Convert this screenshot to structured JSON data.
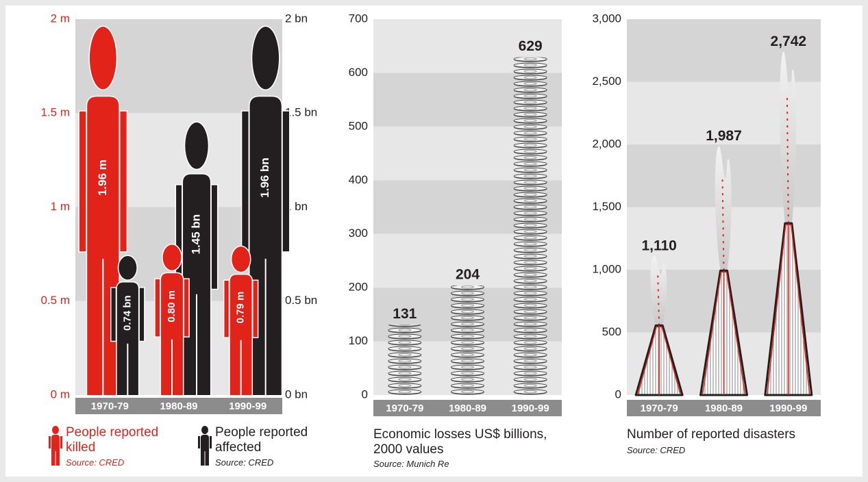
{
  "chart_data": [
    {
      "type": "pictogram",
      "categories": [
        "1970-79",
        "1980-89",
        "1990-99"
      ],
      "series": [
        {
          "name": "People reported killed",
          "color": "#e2231a",
          "values": [
            1.96,
            0.8,
            0.79
          ],
          "value_labels": [
            "1.96 m",
            "0.80 m",
            "0.79 m"
          ],
          "source": "Source: CRED"
        },
        {
          "name": "People reported affected",
          "color": "#231f20",
          "values": [
            0.74,
            1.45,
            1.96
          ],
          "value_labels": [
            "0.74 bn",
            "1.45 bn",
            "1.96 bn"
          ],
          "axis": "y2",
          "source": "Source: CRED"
        }
      ],
      "ylim": [
        0,
        2
      ],
      "yticks": [
        {
          "value": 0,
          "label": "0 m"
        },
        {
          "value": 0.5,
          "label": "0.5 m"
        },
        {
          "value": 1,
          "label": "1 m"
        },
        {
          "value": 1.5,
          "label": "1.5 m"
        },
        {
          "value": 2,
          "label": "2 m"
        }
      ],
      "y2lim": [
        0,
        2
      ],
      "y2ticks": [
        {
          "value": 0,
          "label": "0 bn"
        },
        {
          "value": 0.5,
          "label": "0.5 bn"
        },
        {
          "value": 1,
          "label": "1 bn"
        },
        {
          "value": 1.5,
          "label": "1.5 bn"
        },
        {
          "value": 2,
          "label": "2 bn"
        }
      ]
    },
    {
      "type": "bar",
      "title": "Economic losses US$ billions, 2000 values",
      "source": "Source: Munich Re",
      "categories": [
        "1970-79",
        "1980-89",
        "1990-99"
      ],
      "values": [
        131,
        204,
        629
      ],
      "color": "#f2f2f2",
      "ylim": [
        0,
        700
      ],
      "yticks": [
        0,
        100,
        200,
        300,
        400,
        500,
        600,
        700
      ]
    },
    {
      "type": "volcano",
      "title": "Number of reported disasters",
      "source": "Source: CRED",
      "categories": [
        "1970-79",
        "1980-89",
        "1990-99"
      ],
      "values": [
        1110,
        1987,
        2742
      ],
      "value_labels": [
        "1,110",
        "1,987",
        "2,742"
      ],
      "color": "#e2231a",
      "ylim": [
        0,
        3000
      ],
      "yticks": [
        0,
        500,
        {
          "value": 1000,
          "label": "1,000"
        },
        {
          "value": 1500,
          "label": "1,500"
        },
        {
          "value": 2000,
          "label": "2,000"
        },
        {
          "value": 2500,
          "label": "2,500"
        },
        {
          "value": 3000,
          "label": "3,000"
        }
      ]
    }
  ]
}
